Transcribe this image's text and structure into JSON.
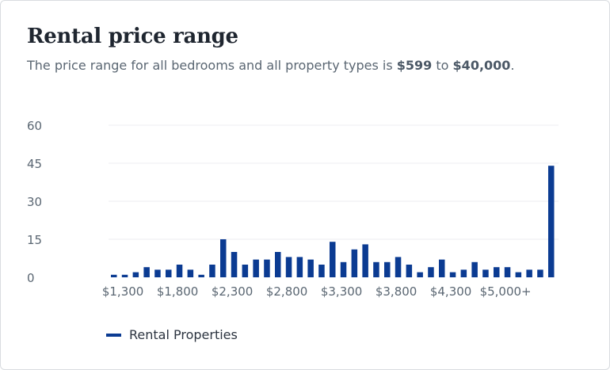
{
  "header": {
    "title": "Rental price range",
    "subtitle_prefix": "The price range for all bedrooms and all property types is ",
    "min_price": "$599",
    "subtitle_mid": " to ",
    "max_price": "$40,000",
    "subtitle_suffix": "."
  },
  "colors": {
    "bar": "#0b3b92",
    "grid": "#eceef1",
    "text": "#5a6672"
  },
  "chart_data": {
    "type": "bar",
    "y_ticks": [
      0,
      15,
      30,
      45,
      60
    ],
    "ylim": [
      0,
      60
    ],
    "x_tick_labels": [
      {
        "label": "$1,300",
        "index": 2.5
      },
      {
        "label": "$1,800",
        "index": 12.5
      },
      {
        "label": "$2,300",
        "index": 22.5
      },
      {
        "label": "$2,800",
        "index": 32.5
      },
      {
        "label": "$3,300",
        "index": 42.5
      },
      {
        "label": "$3,800",
        "index": 52.5
      },
      {
        "label": "$4,300",
        "index": 62.5
      },
      {
        "label": "$5,000+",
        "index": 72.5
      }
    ],
    "series": [
      {
        "name": "Rental Properties",
        "values": [
          1,
          1,
          2,
          4,
          3,
          3,
          5,
          3,
          1,
          5,
          15,
          10,
          5,
          7,
          7,
          10,
          8,
          8,
          7,
          5,
          14,
          6,
          11,
          13,
          6,
          6,
          8,
          5,
          2,
          4,
          7,
          2,
          3,
          6,
          3,
          4,
          4,
          2,
          3,
          3,
          44
        ]
      }
    ]
  }
}
